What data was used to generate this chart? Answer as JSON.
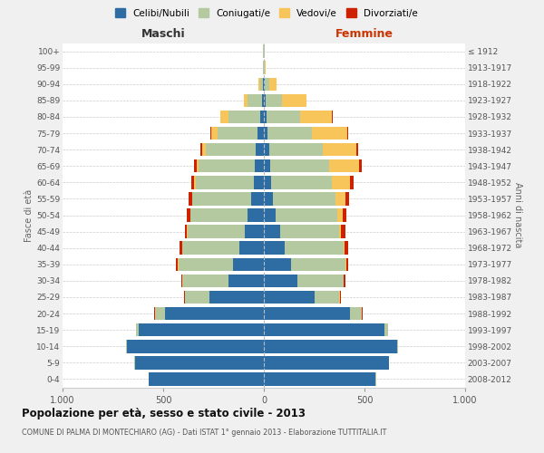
{
  "age_groups": [
    "0-4",
    "5-9",
    "10-14",
    "15-19",
    "20-24",
    "25-29",
    "30-34",
    "35-39",
    "40-44",
    "45-49",
    "50-54",
    "55-59",
    "60-64",
    "65-69",
    "70-74",
    "75-79",
    "80-84",
    "85-89",
    "90-94",
    "95-99",
    "100+"
  ],
  "birth_years": [
    "2008-2012",
    "2003-2007",
    "1998-2002",
    "1993-1997",
    "1988-1992",
    "1983-1987",
    "1978-1982",
    "1973-1977",
    "1968-1972",
    "1963-1967",
    "1958-1962",
    "1953-1957",
    "1948-1952",
    "1943-1947",
    "1938-1942",
    "1933-1937",
    "1928-1932",
    "1923-1927",
    "1918-1922",
    "1913-1917",
    "≤ 1912"
  ],
  "maschi": {
    "celibi": [
      570,
      640,
      680,
      620,
      490,
      270,
      175,
      155,
      120,
      95,
      80,
      65,
      50,
      45,
      40,
      30,
      20,
      10,
      5,
      2,
      2
    ],
    "coniugati": [
      2,
      3,
      5,
      15,
      50,
      120,
      230,
      270,
      285,
      285,
      285,
      290,
      290,
      280,
      250,
      200,
      155,
      70,
      15,
      3,
      2
    ],
    "vedovi": [
      0,
      0,
      0,
      0,
      2,
      2,
      2,
      2,
      2,
      2,
      2,
      3,
      5,
      10,
      15,
      30,
      40,
      20,
      5,
      0,
      0
    ],
    "divorziati": [
      0,
      0,
      0,
      0,
      2,
      3,
      5,
      8,
      10,
      12,
      15,
      18,
      15,
      12,
      10,
      5,
      0,
      0,
      0,
      0,
      0
    ]
  },
  "femmine": {
    "nubili": [
      555,
      620,
      660,
      600,
      430,
      250,
      165,
      135,
      105,
      80,
      60,
      45,
      35,
      30,
      25,
      20,
      15,
      10,
      5,
      2,
      2
    ],
    "coniugate": [
      2,
      3,
      5,
      15,
      55,
      125,
      230,
      270,
      290,
      295,
      305,
      310,
      305,
      295,
      270,
      220,
      165,
      80,
      20,
      3,
      2
    ],
    "vedove": [
      0,
      0,
      0,
      0,
      2,
      2,
      2,
      3,
      5,
      10,
      25,
      50,
      90,
      150,
      165,
      175,
      160,
      120,
      40,
      5,
      1
    ],
    "divorziate": [
      0,
      0,
      0,
      0,
      3,
      5,
      8,
      12,
      18,
      22,
      20,
      18,
      15,
      12,
      8,
      3,
      2,
      0,
      0,
      0,
      0
    ]
  },
  "colors": {
    "celibi": "#2e6da4",
    "coniugati": "#b5c9a0",
    "vedovi": "#f8c55a",
    "divorziati": "#cc2200"
  },
  "title": "Popolazione per età, sesso e stato civile - 2013",
  "subtitle": "COMUNE DI PALMA DI MONTECHIARO (AG) - Dati ISTAT 1° gennaio 2013 - Elaborazione TUTTITALIA.IT",
  "ylabel_left": "Fasce di età",
  "ylabel_right": "Anni di nascita",
  "xlabel_left": "Maschi",
  "xlabel_right": "Femmine",
  "xlim": 1000,
  "background_color": "#f0f0f0",
  "plot_bg": "#ffffff"
}
